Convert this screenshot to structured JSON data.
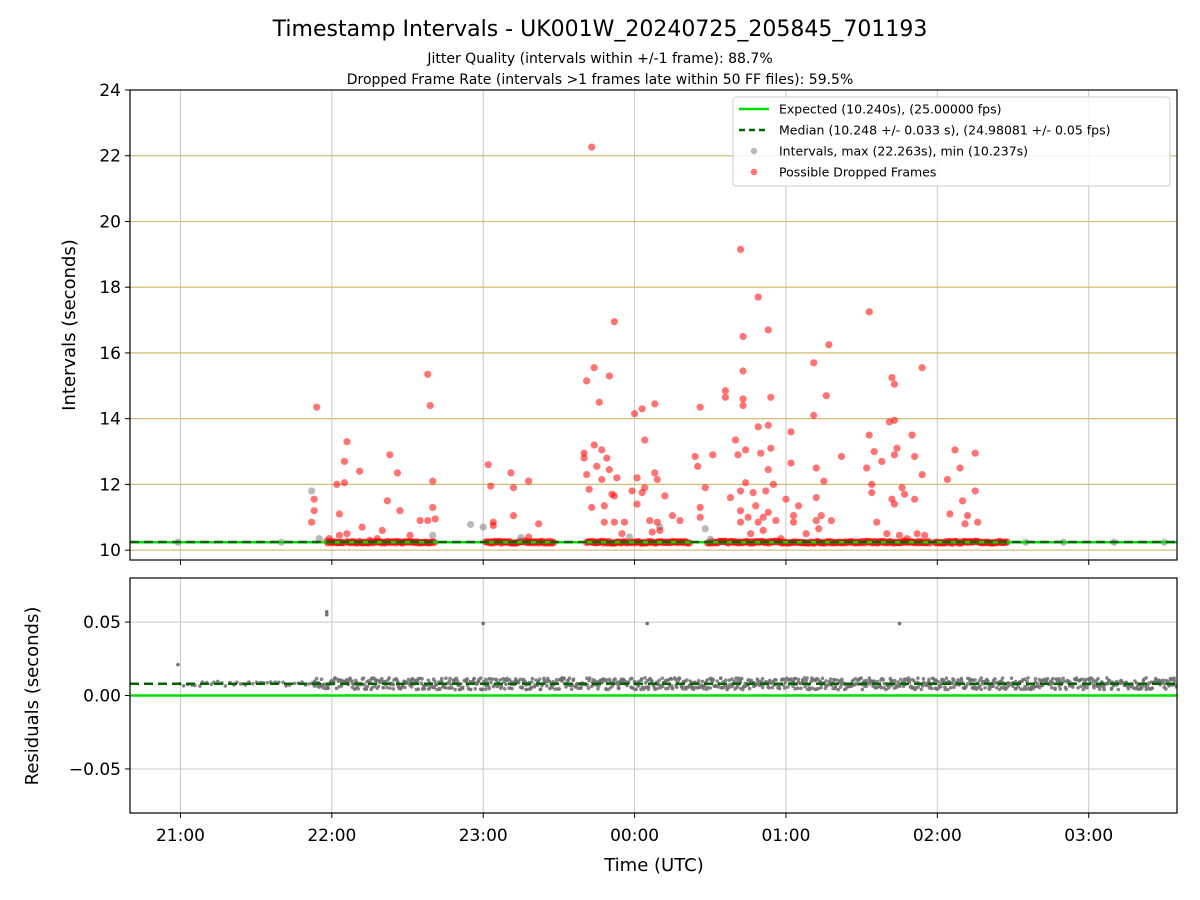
{
  "chart_data": [
    {
      "type": "scatter",
      "title": "Timestamp Intervals - UK001W_20240725_205845_701193",
      "subtitle_lines": [
        "Jitter Quality (intervals within +/-1 frame): 88.7%",
        "Dropped Frame Rate (intervals >1 frames late within 50 FF files): 59.5%"
      ],
      "xlabel": "",
      "ylabel": "Intervals (seconds)",
      "xlim": [
        "20:40",
        "03:35"
      ],
      "ylim": [
        9.7,
        24
      ],
      "yticks": [
        "10",
        "12",
        "14",
        "16",
        "18",
        "20",
        "22",
        "24"
      ],
      "hlines": [
        10,
        12,
        14,
        16,
        18,
        20,
        22
      ],
      "grid": true,
      "legend_position": "top-right",
      "legend": [
        "Expected (10.240s), (25.00000 fps)",
        "Median (10.248 +/- 0.033 s), (24.98081 +/- 0.05 fps)",
        "Intervals, max (22.263s), min (10.237s)",
        "Possible Dropped Frames"
      ],
      "expected_interval": 10.24,
      "median_interval": 10.248,
      "series": [
        {
          "name": "Intervals, max (22.263s), min (10.237s)",
          "color": "#808080",
          "points": [
            [
              "20:59",
              10.24
            ],
            [
              "21:40",
              10.24
            ],
            [
              "21:52",
              11.8
            ],
            [
              "21:55",
              10.35
            ],
            [
              "22:40",
              10.45
            ],
            [
              "22:55",
              10.78
            ],
            [
              "23:00",
              10.7
            ],
            [
              "23:15",
              10.38
            ],
            [
              "23:58",
              10.4
            ],
            [
              "00:10",
              10.7
            ],
            [
              "00:28",
              10.65
            ],
            [
              "00:30",
              10.33
            ],
            [
              "02:35",
              10.24
            ],
            [
              "02:50",
              10.24
            ],
            [
              "03:10",
              10.24
            ],
            [
              "03:30",
              10.24
            ]
          ]
        },
        {
          "name": "Possible Dropped Frames",
          "color": "#ff0000",
          "points": [
            [
              "21:53",
              11.55
            ],
            [
              "21:53",
              11.2
            ],
            [
              "21:52",
              10.85
            ],
            [
              "21:54",
              14.35
            ],
            [
              "21:59",
              10.35
            ],
            [
              "22:02",
              12.0
            ],
            [
              "22:03",
              11.1
            ],
            [
              "22:03",
              10.45
            ],
            [
              "22:05",
              12.7
            ],
            [
              "22:05",
              12.05
            ],
            [
              "22:06",
              13.3
            ],
            [
              "22:06",
              10.5
            ],
            [
              "22:11",
              12.4
            ],
            [
              "22:12",
              10.7
            ],
            [
              "22:15",
              10.3
            ],
            [
              "22:18",
              10.35
            ],
            [
              "22:20",
              10.6
            ],
            [
              "22:22",
              11.5
            ],
            [
              "22:23",
              12.9
            ],
            [
              "22:26",
              12.35
            ],
            [
              "22:27",
              11.2
            ],
            [
              "22:31",
              10.45
            ],
            [
              "22:35",
              10.9
            ],
            [
              "22:38",
              10.9
            ],
            [
              "22:38",
              15.35
            ],
            [
              "22:39",
              14.4
            ],
            [
              "22:40",
              12.1
            ],
            [
              "22:40",
              11.3
            ],
            [
              "22:41",
              10.95
            ],
            [
              "23:02",
              12.6
            ],
            [
              "23:03",
              11.95
            ],
            [
              "23:04",
              10.85
            ],
            [
              "23:04",
              10.75
            ],
            [
              "23:11",
              12.35
            ],
            [
              "23:12",
              11.9
            ],
            [
              "23:12",
              11.05
            ],
            [
              "23:18",
              12.1
            ],
            [
              "23:18",
              10.4
            ],
            [
              "23:22",
              10.8
            ],
            [
              "23:40",
              12.95
            ],
            [
              "23:40",
              12.8
            ],
            [
              "23:41",
              15.15
            ],
            [
              "23:41",
              12.3
            ],
            [
              "23:42",
              11.85
            ],
            [
              "23:43",
              11.3
            ],
            [
              "23:44",
              15.55
            ],
            [
              "23:44",
              13.2
            ],
            [
              "23:45",
              12.55
            ],
            [
              "23:46",
              14.5
            ],
            [
              "23:47",
              13.05
            ],
            [
              "23:47",
              12.15
            ],
            [
              "23:48",
              11.35
            ],
            [
              "23:48",
              10.85
            ],
            [
              "23:49",
              12.8
            ],
            [
              "23:50",
              15.3
            ],
            [
              "23:50",
              12.45
            ],
            [
              "23:51",
              11.7
            ],
            [
              "23:52",
              11.65
            ],
            [
              "23:52",
              10.85
            ],
            [
              "23:52",
              16.95
            ],
            [
              "23:53",
              12.2
            ],
            [
              "23:55",
              10.5
            ],
            [
              "23:56",
              10.85
            ],
            [
              "23:59",
              11.8
            ],
            [
              "00:00",
              14.15
            ],
            [
              "00:01",
              12.2
            ],
            [
              "00:01",
              11.4
            ],
            [
              "00:03",
              14.3
            ],
            [
              "00:03",
              11.75
            ],
            [
              "00:04",
              13.35
            ],
            [
              "00:04",
              11.9
            ],
            [
              "00:06",
              10.9
            ],
            [
              "00:07",
              10.55
            ],
            [
              "00:08",
              14.45
            ],
            [
              "00:08",
              12.35
            ],
            [
              "00:09",
              12.15
            ],
            [
              "00:09",
              10.85
            ],
            [
              "00:10",
              10.6
            ],
            [
              "00:12",
              11.65
            ],
            [
              "00:15",
              11.05
            ],
            [
              "00:18",
              10.9
            ],
            [
              "00:24",
              12.85
            ],
            [
              "00:25",
              12.55
            ],
            [
              "00:26",
              11.3
            ],
            [
              "00:26",
              11.0
            ],
            [
              "00:26",
              14.35
            ],
            [
              "00:28",
              11.9
            ],
            [
              "00:31",
              12.9
            ],
            [
              "00:36",
              14.65
            ],
            [
              "00:36",
              14.85
            ],
            [
              "00:38",
              11.6
            ],
            [
              "00:40",
              13.35
            ],
            [
              "00:41",
              12.9
            ],
            [
              "00:42",
              11.2
            ],
            [
              "00:42",
              11.8
            ],
            [
              "00:42",
              10.85
            ],
            [
              "00:42",
              19.15
            ],
            [
              "00:43",
              16.5
            ],
            [
              "00:43",
              15.45
            ],
            [
              "00:43",
              14.4
            ],
            [
              "00:43",
              14.6
            ],
            [
              "00:44",
              13.05
            ],
            [
              "00:44",
              12.05
            ],
            [
              "00:45",
              11.0
            ],
            [
              "00:46",
              10.5
            ],
            [
              "00:47",
              11.75
            ],
            [
              "00:48",
              11.35
            ],
            [
              "00:49",
              13.75
            ],
            [
              "00:49",
              10.85
            ],
            [
              "00:49",
              17.7
            ],
            [
              "00:50",
              12.95
            ],
            [
              "00:51",
              11.0
            ],
            [
              "00:51",
              10.6
            ],
            [
              "00:52",
              11.8
            ],
            [
              "00:53",
              13.8
            ],
            [
              "00:53",
              12.45
            ],
            [
              "00:53",
              11.15
            ],
            [
              "00:53",
              16.7
            ],
            [
              "00:54",
              14.65
            ],
            [
              "00:54",
              13.1
            ],
            [
              "00:55",
              12.0
            ],
            [
              "00:56",
              10.9
            ],
            [
              "00:58",
              10.35
            ],
            [
              "01:00",
              11.55
            ],
            [
              "01:02",
              13.6
            ],
            [
              "01:02",
              12.65
            ],
            [
              "01:03",
              11.05
            ],
            [
              "01:03",
              10.85
            ],
            [
              "01:05",
              11.35
            ],
            [
              "01:08",
              10.5
            ],
            [
              "01:11",
              15.7
            ],
            [
              "01:11",
              14.1
            ],
            [
              "01:12",
              12.5
            ],
            [
              "01:12",
              11.6
            ],
            [
              "01:12",
              10.9
            ],
            [
              "01:13",
              10.65
            ],
            [
              "01:14",
              11.05
            ],
            [
              "01:15",
              12.1
            ],
            [
              "01:16",
              14.7
            ],
            [
              "01:17",
              16.25
            ],
            [
              "01:18",
              10.9
            ],
            [
              "01:22",
              12.85
            ],
            [
              "01:32",
              12.5
            ],
            [
              "01:33",
              13.5
            ],
            [
              "01:33",
              17.25
            ],
            [
              "01:34",
              12.0
            ],
            [
              "01:34",
              11.75
            ],
            [
              "01:35",
              13.0
            ],
            [
              "01:36",
              10.85
            ],
            [
              "01:38",
              12.7
            ],
            [
              "01:40",
              10.5
            ],
            [
              "01:41",
              13.9
            ],
            [
              "01:42",
              15.25
            ],
            [
              "01:42",
              11.55
            ],
            [
              "01:43",
              13.95
            ],
            [
              "01:43",
              12.9
            ],
            [
              "01:43",
              11.4
            ],
            [
              "01:43",
              15.05
            ],
            [
              "01:44",
              13.1
            ],
            [
              "01:45",
              10.45
            ],
            [
              "01:46",
              11.9
            ],
            [
              "01:47",
              11.7
            ],
            [
              "01:48",
              10.35
            ],
            [
              "01:50",
              13.5
            ],
            [
              "01:51",
              12.85
            ],
            [
              "01:51",
              11.55
            ],
            [
              "01:52",
              10.5
            ],
            [
              "01:54",
              12.3
            ],
            [
              "01:54",
              15.55
            ],
            [
              "01:55",
              10.45
            ],
            [
              "02:04",
              12.15
            ],
            [
              "02:05",
              11.1
            ],
            [
              "02:07",
              13.05
            ],
            [
              "02:09",
              12.5
            ],
            [
              "02:10",
              11.5
            ],
            [
              "02:11",
              10.8
            ],
            [
              "02:12",
              11.05
            ],
            [
              "02:15",
              12.95
            ],
            [
              "02:15",
              11.8
            ],
            [
              "02:16",
              10.85
            ]
          ]
        }
      ],
      "dense_ranges": [
        [
          "21:58",
          "22:05"
        ],
        [
          "22:06",
          "22:41"
        ],
        [
          "23:01",
          "23:28"
        ],
        [
          "23:41",
          "00:22"
        ],
        [
          "00:29",
          "01:57"
        ],
        [
          "01:59",
          "02:28"
        ]
      ],
      "colors": {
        "expected": "#00e000",
        "median": "#006400",
        "hline": "#d4c07a",
        "grid": "#c8c8c8"
      }
    },
    {
      "type": "scatter",
      "xlabel": "Time (UTC)",
      "ylabel": "Residuals (seconds)",
      "xlim": [
        "20:40",
        "03:35"
      ],
      "ylim": [
        -0.08,
        0.08
      ],
      "yticks": [
        "−0.05",
        "0.00",
        "0.05"
      ],
      "xticks": [
        "21:00",
        "22:00",
        "23:00",
        "00:00",
        "01:00",
        "02:00",
        "03:00"
      ],
      "grid": true,
      "expected_residual": 0.0,
      "median_residual": 0.008,
      "series": [
        {
          "name": "Residuals",
          "color": "#707070",
          "outliers": [
            [
              "20:59",
              0.021
            ],
            [
              "21:58",
              0.055
            ],
            [
              "21:58",
              0.057
            ],
            [
              "23:00",
              0.049
            ],
            [
              "00:05",
              0.049
            ],
            [
              "01:45",
              0.049
            ]
          ],
          "band_ranges": [
            [
              "21:00",
              "21:52"
            ],
            [
              "21:52",
              "03:35"
            ]
          ],
          "band_center": 0.008,
          "band_spread": 0.004
        }
      ]
    }
  ]
}
